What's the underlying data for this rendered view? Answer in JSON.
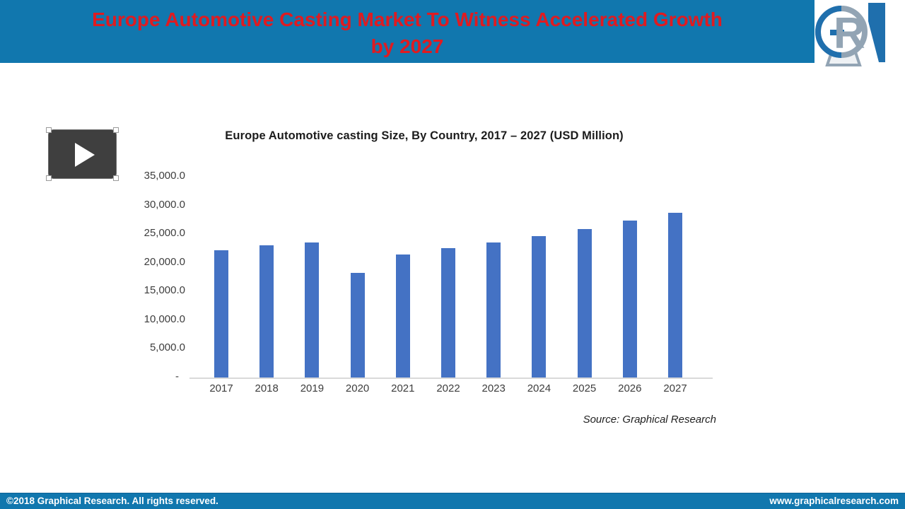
{
  "header": {
    "title_line1": "Europe Automotive Casting Market To Witness Accelerated Growth",
    "title_line2": "by 2027"
  },
  "logo": {
    "monogram": "GR",
    "alt": "Graphical Research logo"
  },
  "chart_data": {
    "type": "bar",
    "title": "Europe Automotive casting Size, By Country, 2017 – 2027 (USD Million)",
    "categories": [
      "2017",
      "2018",
      "2019",
      "2020",
      "2021",
      "2022",
      "2023",
      "2024",
      "2025",
      "2026",
      "2027"
    ],
    "values": [
      22200,
      23000,
      23500,
      18200,
      21500,
      22500,
      23600,
      24600,
      25900,
      27300,
      28700
    ],
    "unit": "USD Million",
    "ylim": [
      0,
      35000
    ],
    "ytick_step": 5000,
    "ytick_labels": [
      "-",
      "5,000.0",
      "10,000.0",
      "15,000.0",
      "20,000.0",
      "25,000.0",
      "30,000.0",
      "35,000.0"
    ],
    "grid": false,
    "legend": null,
    "bar_color": "#4472c4",
    "source_note": "Source: Graphical Research"
  },
  "footer": {
    "left_text": "©2018 Graphical Research. All rights reserved.",
    "right_text": "www.graphicalresearch.com"
  },
  "colors": {
    "band_blue": "#1177ae",
    "title_red": "#df1b21",
    "bar_blue": "#4472c4",
    "logo_gray": "#92a4b4",
    "logo_blue": "#1f6fad"
  }
}
